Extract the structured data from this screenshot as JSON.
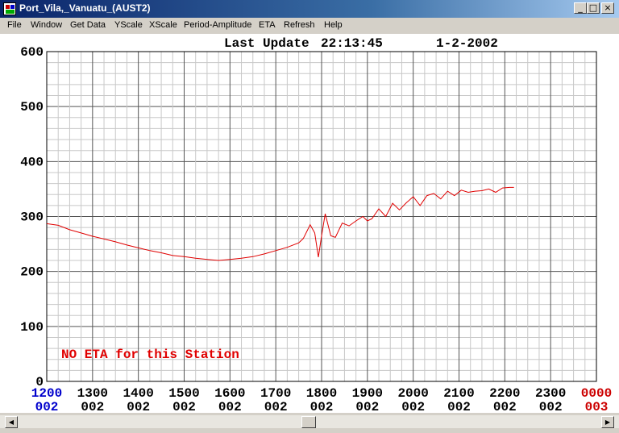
{
  "window": {
    "title": "Port_Vila,_Vanuatu_(AUST2)",
    "minimize_glyph": "_",
    "maximize_glyph": "□",
    "close_glyph": "×"
  },
  "menu": [
    "File",
    "Window",
    "Get Data",
    "YScale",
    "XScale",
    "Period-Amplitude",
    "ETA",
    "Refresh",
    "Help"
  ],
  "header": {
    "label": "Last Update",
    "time": "22:13:45",
    "date": "1-2-2002"
  },
  "annotation": "NO ETA for this Station",
  "colors": {
    "trace": "#e00000",
    "annotation": "#e00000",
    "first_time_label": "#0000cc",
    "last_time_label": "#cc0000",
    "titlebar": "#0a246a"
  },
  "icons": {
    "scroll_left": "left-arrow-icon",
    "scroll_right": "right-arrow-icon"
  },
  "chart_data": {
    "type": "line",
    "title": "",
    "xlabel": "",
    "ylabel": "",
    "ylim": [
      0,
      600
    ],
    "yticks": [
      "0",
      "100",
      "200",
      "300",
      "400",
      "500",
      "600"
    ],
    "xlim": [
      0,
      12
    ],
    "grid": true,
    "xticks": [
      {
        "time": "1200",
        "day": "002"
      },
      {
        "time": "1300",
        "day": "002"
      },
      {
        "time": "1400",
        "day": "002"
      },
      {
        "time": "1500",
        "day": "002"
      },
      {
        "time": "1600",
        "day": "002"
      },
      {
        "time": "1700",
        "day": "002"
      },
      {
        "time": "1800",
        "day": "002"
      },
      {
        "time": "1900",
        "day": "002"
      },
      {
        "time": "2000",
        "day": "002"
      },
      {
        "time": "2100",
        "day": "002"
      },
      {
        "time": "2200",
        "day": "002"
      },
      {
        "time": "2300",
        "day": "002"
      },
      {
        "time": "0000",
        "day": "003"
      }
    ],
    "series": [
      {
        "x": [
          0,
          0.25,
          0.5,
          0.75,
          1,
          1.25,
          1.5,
          1.75,
          2,
          2.25,
          2.5,
          2.75,
          3,
          3.25,
          3.5,
          3.75,
          4,
          4.25,
          4.5,
          4.75,
          5,
          5.25,
          5.5,
          5.6,
          5.75,
          5.85,
          5.93,
          6.0,
          6.08,
          6.2,
          6.3,
          6.45,
          6.6,
          6.75,
          6.9,
          7.0,
          7.1,
          7.25,
          7.4,
          7.55,
          7.7,
          7.85,
          8.0,
          8.15,
          8.3,
          8.45,
          8.6,
          8.75,
          8.9,
          9.05,
          9.2,
          9.35,
          9.5,
          9.65,
          9.8,
          9.95,
          10.1,
          10.2
        ],
        "values": [
          287,
          284,
          276,
          270,
          264,
          259,
          254,
          248,
          243,
          238,
          234,
          229,
          227,
          224,
          222,
          220,
          222,
          224,
          227,
          232,
          238,
          244,
          252,
          260,
          285,
          270,
          226,
          265,
          305,
          265,
          262,
          288,
          283,
          292,
          300,
          292,
          296,
          314,
          300,
          324,
          312,
          325,
          336,
          320,
          338,
          342,
          332,
          346,
          338,
          348,
          344,
          346,
          347,
          350,
          344,
          352,
          353,
          353
        ]
      }
    ]
  }
}
